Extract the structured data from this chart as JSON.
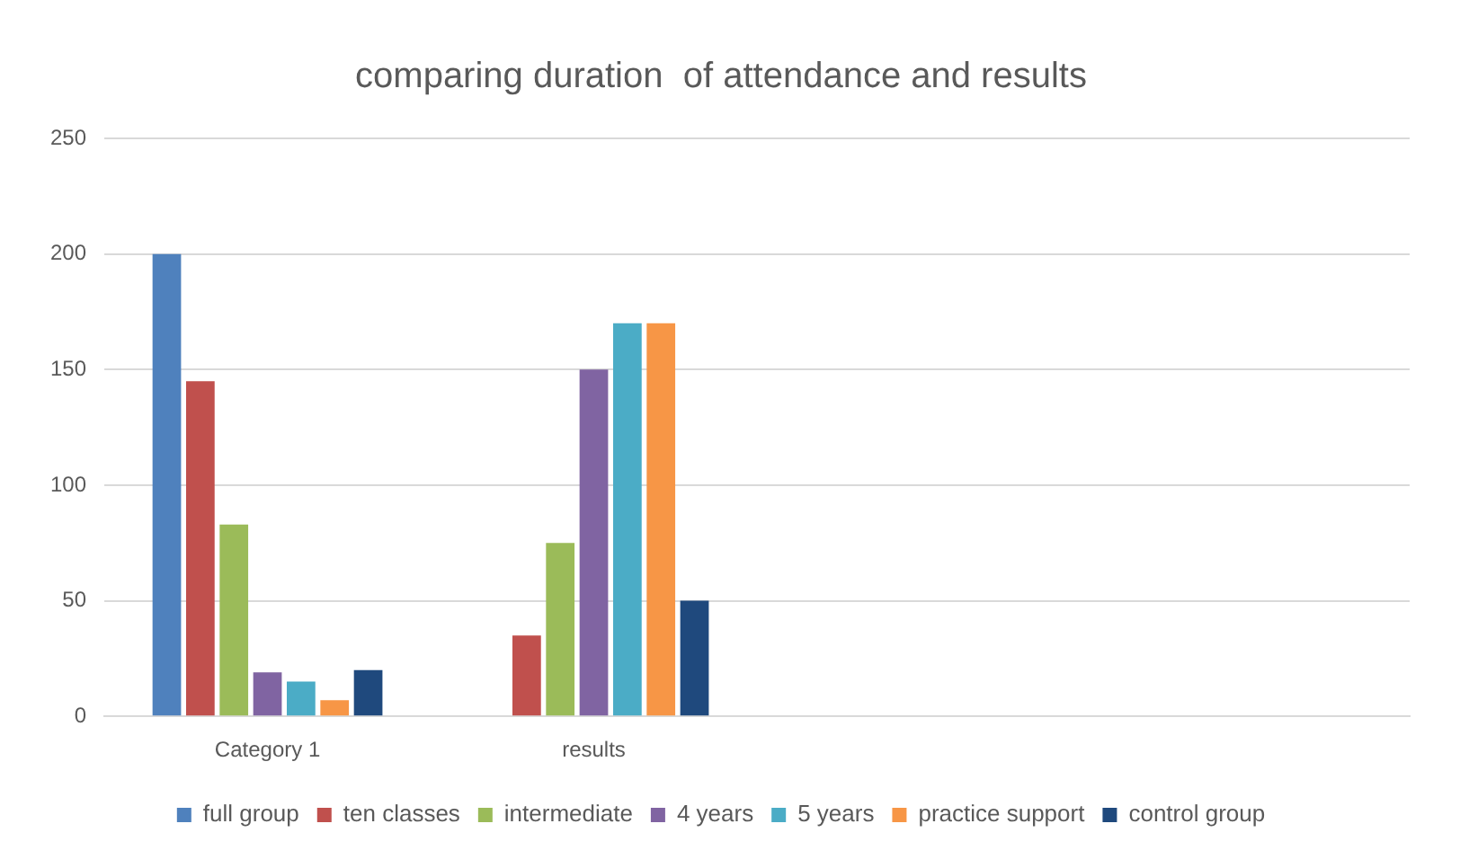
{
  "chart_data": {
    "type": "bar",
    "title": "comparing duration  of attendance and results",
    "categories": [
      "Category 1",
      "results",
      null,
      null
    ],
    "series": [
      {
        "name": "full group",
        "color": "#4f81bd",
        "values": [
          200,
          null,
          null,
          null
        ]
      },
      {
        "name": "ten classes",
        "color": "#c0504d",
        "values": [
          145,
          35,
          null,
          null
        ]
      },
      {
        "name": "intermediate",
        "color": "#9bbb59",
        "values": [
          83,
          75,
          null,
          null
        ]
      },
      {
        "name": "4 years",
        "color": "#8064a2",
        "values": [
          19,
          150,
          null,
          null
        ]
      },
      {
        "name": "5 years",
        "color": "#4bacc6",
        "values": [
          15,
          170,
          null,
          null
        ]
      },
      {
        "name": "practice support",
        "color": "#f79646",
        "values": [
          7,
          170,
          null,
          null
        ]
      },
      {
        "name": "control group",
        "color": "#1f497d",
        "values": [
          20,
          50,
          null,
          null
        ]
      }
    ],
    "ylim": [
      0,
      250
    ],
    "yticks": [
      0,
      50,
      100,
      150,
      200,
      250
    ],
    "grid": "y",
    "legend": "bottom"
  }
}
